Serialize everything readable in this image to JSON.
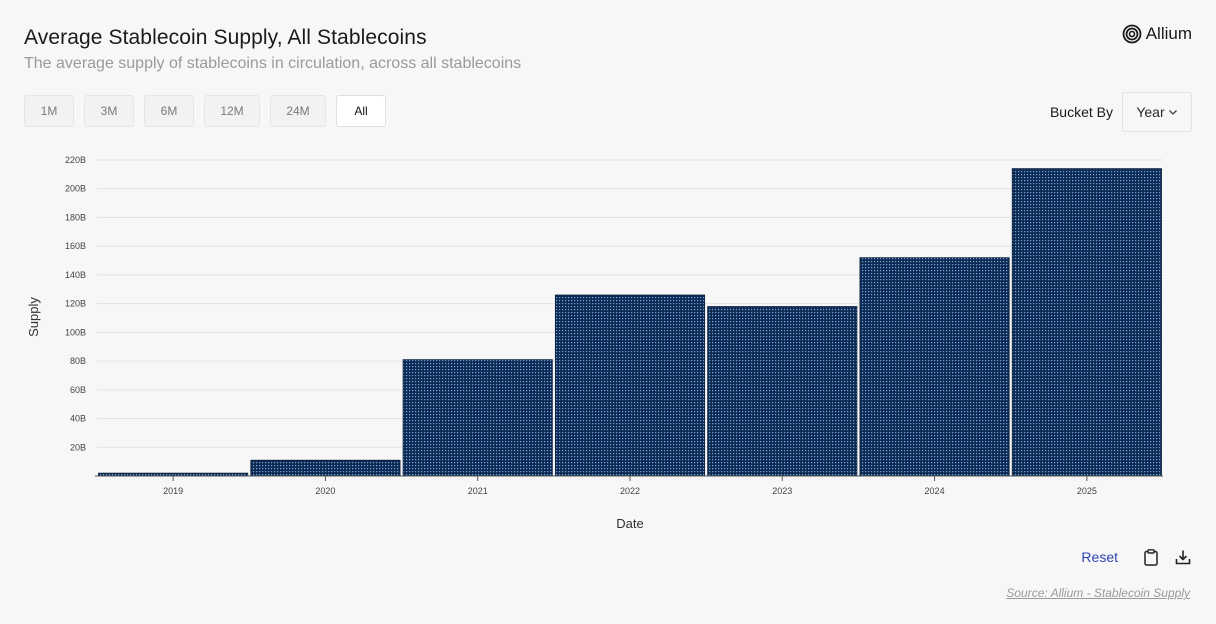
{
  "header": {
    "title": "Average Stablecoin Supply, All Stablecoins",
    "subtitle": "The average supply of stablecoins in circulation, across all stablecoins",
    "brand": "Allium"
  },
  "range_buttons": [
    {
      "label": "1M",
      "active": false
    },
    {
      "label": "3M",
      "active": false
    },
    {
      "label": "6M",
      "active": false
    },
    {
      "label": "12M",
      "active": false
    },
    {
      "label": "24M",
      "active": false
    },
    {
      "label": "All",
      "active": true
    }
  ],
  "bucket": {
    "label": "Bucket By",
    "value": "Year"
  },
  "footer": {
    "reset": "Reset",
    "source": "Source: Allium - Stablecoin Supply"
  },
  "colors": {
    "bar_fill": "#0f2a52",
    "bar_dot": "#6fa8dc",
    "grid": "#e2e2e4",
    "reset": "#2f45b5"
  },
  "chart_data": {
    "type": "bar",
    "title": "Average Stablecoin Supply, All Stablecoins",
    "xlabel": "Date",
    "ylabel": "Supply",
    "categories": [
      "2019",
      "2020",
      "2021",
      "2022",
      "2023",
      "2024",
      "2025"
    ],
    "values": [
      2,
      11,
      81,
      126,
      118,
      152,
      214
    ],
    "value_unit": "B",
    "ylim": [
      0,
      220
    ],
    "yticks": [
      20,
      40,
      60,
      80,
      100,
      120,
      140,
      160,
      180,
      200,
      220
    ],
    "ytick_labels": [
      "20B",
      "40B",
      "60B",
      "80B",
      "100B",
      "120B",
      "140B",
      "160B",
      "180B",
      "200B",
      "220B"
    ],
    "grid": true
  }
}
